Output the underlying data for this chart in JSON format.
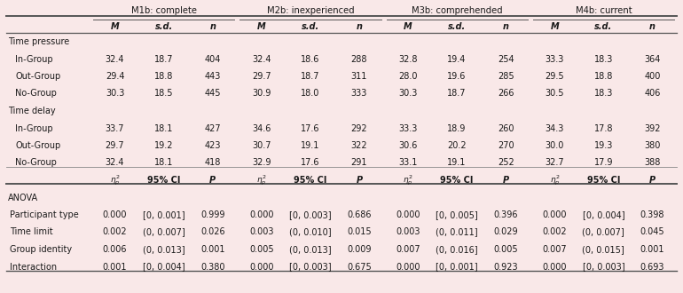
{
  "bg_color": "#f9e8e8",
  "model_headers": [
    "M1b: complete",
    "M2b: inexperienced",
    "M3b: comprehended",
    "M4b: current"
  ],
  "row_groups": [
    {
      "label": "Time pressure",
      "rows": [
        {
          "label": "In-Group",
          "m1": [
            "32.4",
            "18.7",
            "404"
          ],
          "m2": [
            "32.4",
            "18.6",
            "288"
          ],
          "m3": [
            "32.8",
            "19.4",
            "254"
          ],
          "m4": [
            "33.3",
            "18.3",
            "364"
          ]
        },
        {
          "label": "Out-Group",
          "m1": [
            "29.4",
            "18.8",
            "443"
          ],
          "m2": [
            "29.7",
            "18.7",
            "311"
          ],
          "m3": [
            "28.0",
            "19.6",
            "285"
          ],
          "m4": [
            "29.5",
            "18.8",
            "400"
          ]
        },
        {
          "label": "No-Group",
          "m1": [
            "30.3",
            "18.5",
            "445"
          ],
          "m2": [
            "30.9",
            "18.0",
            "333"
          ],
          "m3": [
            "30.3",
            "18.7",
            "266"
          ],
          "m4": [
            "30.5",
            "18.3",
            "406"
          ]
        }
      ]
    },
    {
      "label": "Time delay",
      "rows": [
        {
          "label": "In-Group",
          "m1": [
            "33.7",
            "18.1",
            "427"
          ],
          "m2": [
            "34.6",
            "17.6",
            "292"
          ],
          "m3": [
            "33.3",
            "18.9",
            "260"
          ],
          "m4": [
            "34.3",
            "17.8",
            "392"
          ]
        },
        {
          "label": "Out-Group",
          "m1": [
            "29.7",
            "19.2",
            "423"
          ],
          "m2": [
            "30.7",
            "19.1",
            "322"
          ],
          "m3": [
            "30.6",
            "20.2",
            "270"
          ],
          "m4": [
            "30.0",
            "19.3",
            "380"
          ]
        },
        {
          "label": "No-Group",
          "m1": [
            "32.4",
            "18.1",
            "418"
          ],
          "m2": [
            "32.9",
            "17.6",
            "291"
          ],
          "m3": [
            "33.1",
            "19.1",
            "252"
          ],
          "m4": [
            "32.7",
            "17.9",
            "388"
          ]
        }
      ]
    }
  ],
  "anova_rows": [
    {
      "label": "Participant type",
      "m1": [
        "0.000",
        "[0, 0.001]",
        "0.999"
      ],
      "m2": [
        "0.000",
        "[0, 0.003]",
        "0.686"
      ],
      "m3": [
        "0.000",
        "[0, 0.005]",
        "0.396"
      ],
      "m4": [
        "0.000",
        "[0, 0.004]",
        "0.398"
      ]
    },
    {
      "label": "Time limit",
      "m1": [
        "0.002",
        "(0, 0.007]",
        "0.026"
      ],
      "m2": [
        "0.003",
        "(0, 0.010]",
        "0.015"
      ],
      "m3": [
        "0.003",
        "(0, 0.011]",
        "0.029"
      ],
      "m4": [
        "0.002",
        "(0, 0.007]",
        "0.045"
      ]
    },
    {
      "label": "Group identity",
      "m1": [
        "0.006",
        "(0, 0.013]",
        "0.001"
      ],
      "m2": [
        "0.005",
        "(0, 0.013]",
        "0.009"
      ],
      "m3": [
        "0.007",
        "(0, 0.016]",
        "0.005"
      ],
      "m4": [
        "0.007",
        "(0, 0.015]",
        "0.001"
      ]
    },
    {
      "label": "Interaction",
      "m1": [
        "0.001",
        "[0, 0.004]",
        "0.380"
      ],
      "m2": [
        "0.000",
        "[0, 0.003]",
        "0.675"
      ],
      "m3": [
        "0.000",
        "[0, 0.001]",
        "0.923"
      ],
      "m4": [
        "0.000",
        "[0, 0.003]",
        "0.693"
      ]
    }
  ],
  "text_color": "#1a1a1a",
  "line_color": "#888888",
  "thick_line_color": "#555555",
  "fs_header": 7.2,
  "fs_body": 7.0,
  "fs_small": 6.5
}
